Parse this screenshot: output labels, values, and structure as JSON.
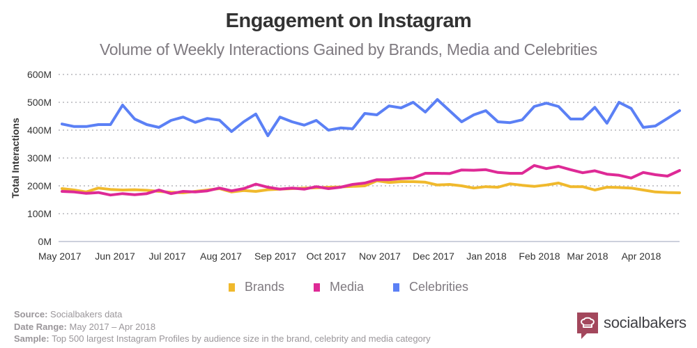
{
  "header": {
    "title": "Engagement on Instagram",
    "subtitle": "Volume of Weekly Interactions Gained by Brands, Media and Celebrities"
  },
  "legend": [
    {
      "label": "Brands",
      "color": "#f0b92d"
    },
    {
      "label": "Media",
      "color": "#de2a96"
    },
    {
      "label": "Celebrities",
      "color": "#5b80f5"
    }
  ],
  "footer": {
    "source_label": "Source:",
    "source_value": "Socialbakers data",
    "range_label": "Date Range:",
    "range_value": "May 2017 – Apr 2018",
    "sample_label": "Sample:",
    "sample_value": "Top 500 largest Instagram Profiles by audience size in the brand, celebrity and media category"
  },
  "logo": {
    "text": "socialbakers",
    "icon": "chef-hat-icon",
    "color": "#a3475c"
  },
  "chart_data": {
    "type": "line",
    "title": "Engagement on Instagram",
    "subtitle": "Volume of Weekly Interactions Gained by Brands, Media and Celebrities",
    "xlabel": "",
    "ylabel": "Total Interactions",
    "ylim": [
      0,
      600
    ],
    "yunit": "M",
    "yticks": [
      "0M",
      "100M",
      "200M",
      "300M",
      "400M",
      "500M",
      "600M"
    ],
    "xticks": [
      "May 2017",
      "Jun 2017",
      "Jul 2017",
      "Aug 2017",
      "Sep 2017",
      "Oct 2017",
      "Nov 2017",
      "Dec 2017",
      "Jan 2018",
      "Feb 2018",
      "Mar 2018",
      "Apr 2018"
    ],
    "grid": true,
    "legend_position": "bottom-center",
    "weeks": 52,
    "series": [
      {
        "name": "Brands",
        "color": "#f0b92d",
        "values": [
          190,
          185,
          178,
          192,
          187,
          185,
          186,
          184,
          180,
          177,
          175,
          180,
          185,
          190,
          178,
          183,
          180,
          186,
          188,
          190,
          192,
          193,
          195,
          196,
          198,
          200,
          218,
          212,
          215,
          215,
          213,
          203,
          205,
          200,
          192,
          197,
          195,
          207,
          202,
          198,
          203,
          210,
          197,
          197,
          185,
          195,
          194,
          192,
          185,
          178,
          176,
          175
        ]
      },
      {
        "name": "Media",
        "color": "#de2a96",
        "values": [
          180,
          178,
          173,
          176,
          167,
          172,
          168,
          172,
          185,
          172,
          180,
          178,
          182,
          192,
          182,
          190,
          206,
          195,
          188,
          192,
          188,
          197,
          190,
          195,
          205,
          210,
          222,
          222,
          226,
          228,
          245,
          245,
          244,
          257,
          256,
          258,
          248,
          245,
          245,
          273,
          262,
          270,
          258,
          247,
          254,
          242,
          238,
          228,
          248,
          240,
          235,
          255
        ]
      },
      {
        "name": "Celebrities",
        "color": "#5b80f5",
        "values": [
          422,
          413,
          413,
          420,
          420,
          490,
          440,
          420,
          410,
          435,
          447,
          428,
          442,
          436,
          395,
          430,
          458,
          380,
          447,
          430,
          418,
          435,
          400,
          408,
          405,
          460,
          455,
          487,
          480,
          500,
          465,
          510,
          470,
          430,
          455,
          470,
          430,
          427,
          437,
          485,
          497,
          485,
          440,
          440,
          482,
          425,
          500,
          478,
          410,
          415,
          442,
          470
        ]
      }
    ]
  }
}
